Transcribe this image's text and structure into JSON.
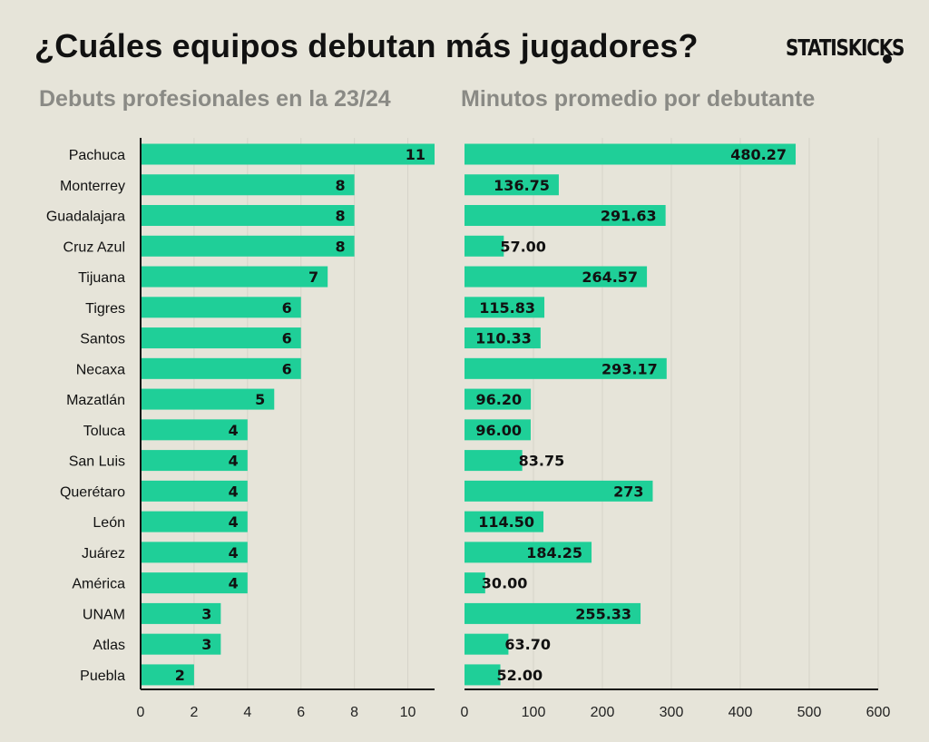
{
  "header": {
    "title": "¿Cuáles equipos debutan más jugadores?",
    "logo_text": "STATISKICKS"
  },
  "colors": {
    "bar": "#1fcf98",
    "background": "#e6e4d9",
    "text": "#111111",
    "subtitle": "#8a8a85"
  },
  "chart_data": [
    {
      "type": "bar",
      "orientation": "horizontal",
      "title": "Debuts profesionales en la 23/24",
      "categories": [
        "Pachuca",
        "Monterrey",
        "Guadalajara",
        "Cruz Azul",
        "Tijuana",
        "Tigres",
        "Santos",
        "Necaxa",
        "Mazatlán",
        "Toluca",
        "San Luis",
        "Querétaro",
        "León",
        "Juárez",
        "América",
        "UNAM",
        "Atlas",
        "Puebla"
      ],
      "values": [
        11,
        8,
        8,
        8,
        7,
        6,
        6,
        6,
        5,
        4,
        4,
        4,
        4,
        4,
        4,
        3,
        3,
        2
      ],
      "labels": [
        "11",
        "8",
        "8",
        "8",
        "7",
        "6",
        "6",
        "6",
        "5",
        "4",
        "4",
        "4",
        "4",
        "4",
        "4",
        "3",
        "3",
        "2"
      ],
      "xlim": [
        0,
        11
      ],
      "xticks": [
        0,
        2,
        4,
        6,
        8,
        10
      ],
      "grid": true
    },
    {
      "type": "bar",
      "orientation": "horizontal",
      "title": "Minutos promedio por debutante",
      "categories": [
        "Pachuca",
        "Monterrey",
        "Guadalajara",
        "Cruz Azul",
        "Tijuana",
        "Tigres",
        "Santos",
        "Necaxa",
        "Mazatlán",
        "Toluca",
        "San Luis",
        "Querétaro",
        "León",
        "Juárez",
        "América",
        "UNAM",
        "Atlas",
        "Puebla"
      ],
      "values": [
        480.27,
        136.75,
        291.63,
        57.0,
        264.57,
        115.83,
        110.33,
        293.17,
        96.2,
        96.0,
        83.75,
        273,
        114.5,
        184.25,
        30.0,
        255.33,
        63.7,
        52.0
      ],
      "labels": [
        "480.27",
        "136.75",
        "291.63",
        "57.00",
        "264.57",
        "115.83",
        "110.33",
        "293.17",
        "96.20",
        "96.00",
        "83.75",
        "273",
        "114.50",
        "184.25",
        "30.00",
        "255.33",
        "63.70",
        "52.00"
      ],
      "xlim": [
        0,
        600
      ],
      "xticks": [
        0,
        100,
        200,
        300,
        400,
        500,
        600
      ],
      "grid": true
    }
  ]
}
